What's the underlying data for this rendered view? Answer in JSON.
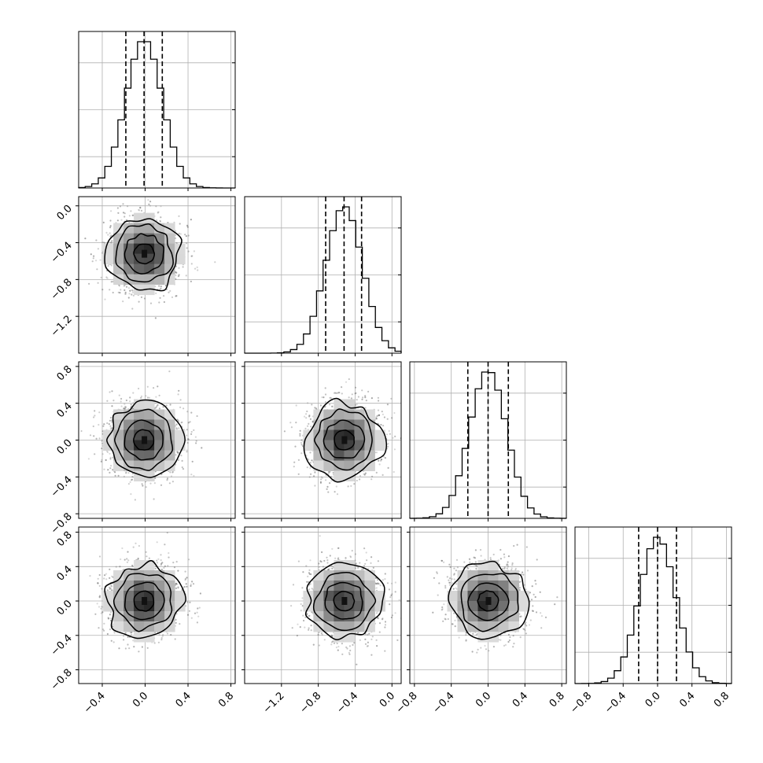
{
  "chart_data": {
    "type": "corner",
    "parameters": 4,
    "colors": {
      "line": "#000000",
      "grid": "#b0b0b0",
      "points": "#6e6e6e",
      "background": "#ffffff"
    },
    "grid": true,
    "quantile_lines": "dashed",
    "tick_labels": {
      "x": [
        [
          "−0.4",
          "0.0",
          "0.4",
          "0.8"
        ],
        [
          "−1.2",
          "−0.8",
          "−0.4",
          "0.0"
        ],
        [
          "−0.8",
          "−0.4",
          "0.0",
          "0.4",
          "0.8"
        ],
        [
          "−0.8",
          "−0.4",
          "0.0",
          "0.4",
          "0.8"
        ]
      ],
      "y": [
        [],
        [
          "0.0",
          "−0.4",
          "−0.8",
          "−1.2"
        ],
        [
          "0.8",
          "0.4",
          "0.0",
          "−0.4",
          "−0.8"
        ],
        [
          "0.8",
          "0.4",
          "0.0",
          "−0.4",
          "−0.8"
        ]
      ]
    },
    "params": [
      {
        "mean": -0.01,
        "sd": 0.17,
        "range": [
          -0.62,
          0.84
        ],
        "ticks": [
          -0.4,
          0.0,
          0.4,
          0.8
        ],
        "quantiles": [
          -0.18,
          -0.01,
          0.16
        ],
        "bin_width": 0.061
      },
      {
        "mean": -0.52,
        "sd": 0.2,
        "range": [
          -1.6,
          0.1
        ],
        "ticks": [
          -1.2,
          -0.8,
          -0.4,
          0.0
        ],
        "quantiles": [
          -0.72,
          -0.52,
          -0.33
        ],
        "bin_width": 0.071
      },
      {
        "mean": 0.0,
        "sd": 0.2,
        "range": [
          -0.85,
          0.85
        ],
        "ticks": [
          -0.8,
          -0.4,
          0.0,
          0.4,
          0.8
        ],
        "quantiles": [
          -0.22,
          0.0,
          0.22
        ],
        "bin_width": 0.071
      },
      {
        "mean": 0.0,
        "sd": 0.21,
        "range": [
          -0.96,
          0.86
        ],
        "ticks": [
          -0.8,
          -0.4,
          0.0,
          0.4,
          0.8
        ],
        "quantiles": [
          -0.22,
          0.0,
          0.22
        ],
        "bin_width": 0.076
      }
    ],
    "correlations": [
      [
        1,
        0,
        0,
        0
      ],
      [
        0,
        1,
        0,
        0
      ],
      [
        0,
        0,
        1,
        0
      ],
      [
        0,
        0,
        0,
        1
      ]
    ]
  }
}
